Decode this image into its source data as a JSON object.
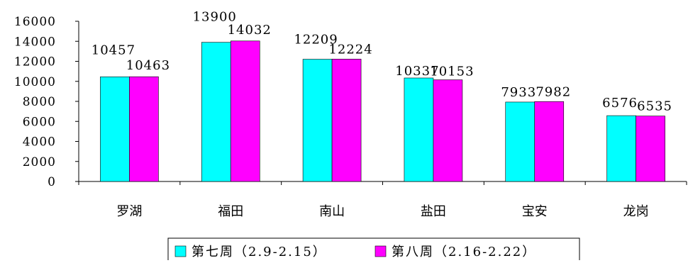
{
  "chart_data": {
    "type": "bar",
    "categories": [
      "罗湖",
      "福田",
      "南山",
      "盐田",
      "宝安",
      "龙岗"
    ],
    "series": [
      {
        "name": "第七周（2.9-2.15）",
        "color": "#00FFFF",
        "values": [
          10457,
          13900,
          12209,
          10337,
          7933,
          6576
        ]
      },
      {
        "name": "第八周（2.16-2.22）",
        "color": "#FF00FF",
        "values": [
          10463,
          14032,
          12224,
          10153,
          7982,
          6535
        ]
      }
    ],
    "y_ticks": [
      "0",
      "2000",
      "4000",
      "6000",
      "8000",
      "10000",
      "12000",
      "14000",
      "16000"
    ],
    "ylim": [
      0,
      16000
    ],
    "grid": false,
    "legend_position": "bottom"
  }
}
